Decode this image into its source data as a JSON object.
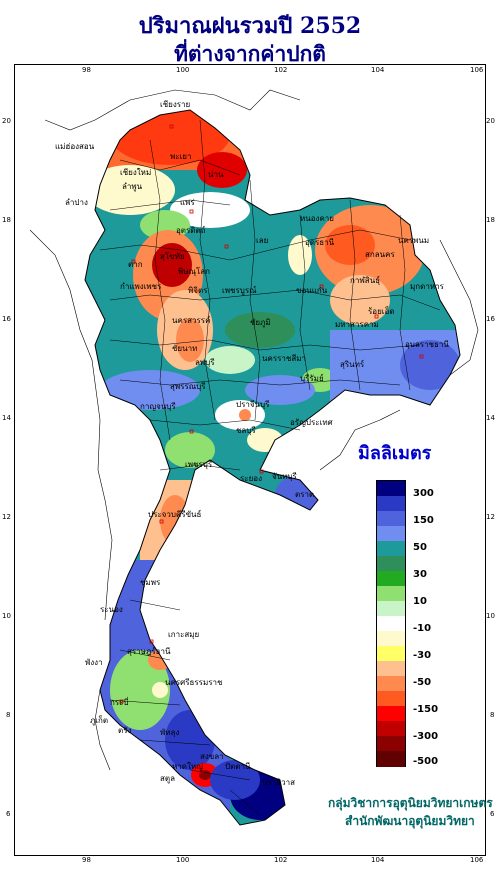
{
  "title": {
    "line1": "ปริมาณฝนรวมปี  2552",
    "line2": "ที่ต่างจากค่าปกติ"
  },
  "axes": {
    "x_ticks": [
      "98",
      "100",
      "102",
      "104",
      "106"
    ],
    "y_ticks": [
      "20",
      "18",
      "16",
      "14",
      "12",
      "10",
      "8",
      "6"
    ]
  },
  "legend": {
    "title": "มิลลิเมตร",
    "labels": [
      "300",
      "150",
      "50",
      "30",
      "10",
      "-10",
      "-30",
      "-50",
      "-150",
      "-300",
      "-500"
    ],
    "colors": [
      "#000080",
      "#2a3ac4",
      "#4f64dc",
      "#6f8ef0",
      "#1e9a9a",
      "#2e8f5a",
      "#22aa22",
      "#8fe070",
      "#c8f4c8",
      "#ffffff",
      "#fffacd",
      "#ffff66",
      "#ffc090",
      "#ff8a50",
      "#ff5a20",
      "#ff0000",
      "#c00000",
      "#8b0000",
      "#600000"
    ]
  },
  "places": [
    "เชียงราย",
    "แม่ฮ่องสอน",
    "พะเยา",
    "เชียงใหม่",
    "ลำพูน",
    "น่าน",
    "แพร่",
    "ลำปาง",
    "อุตรดิตถ์",
    "ตาก",
    "พิษณุโลก",
    "สุโขทัย",
    "กำแพงเพชร",
    "พิจิตร",
    "เพชรบูรณ์",
    "นครสวรรค์",
    "เลย",
    "หนองคาย",
    "อุดรธานี",
    "สกลนคร",
    "นครพนม",
    "มุกดาหาร",
    "ขอนแก่น",
    "ชัยภูมิ",
    "กาฬสินธุ์",
    "ร้อยเอ็ด",
    "มหาสารคาม",
    "อุบลราชธานี",
    "สุรินทร์",
    "นครราชสีมา",
    "บุรีรัมย์",
    "ลพบุรี",
    "ชัยนาท",
    "สุพรรณบุรี",
    "กาญจนบุรี",
    "ปราจีนบุรี",
    "อรัญประเทศ",
    "ชลบุรี",
    "ระยอง",
    "จันทบุรี",
    "ตราด",
    "เพชรบุรี",
    "ประจวบคีรีขันธ์",
    "ชุมพร",
    "ระนอง",
    "สุราษฎร์ธานี",
    "เกาะสมุย",
    "กระบี่",
    "พังงา",
    "ภูเก็ต",
    "นครศรีธรรมราช",
    "ตรัง",
    "พัทลุง",
    "สงขลา",
    "หาดใหญ่",
    "ปัตตานี",
    "นราธิวาส",
    "สตูล"
  ],
  "credit": {
    "line1": "กลุ่มวิชาการอุตุนิยมวิทยาเกษตร",
    "line2": "สำนักพัฒนาอุตุนิยมวิทยา"
  }
}
